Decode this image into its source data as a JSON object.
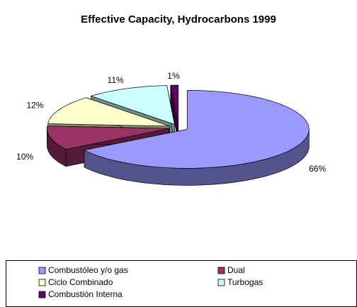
{
  "chart_data": {
    "type": "pie3d",
    "title": "Effective Capacity, Hydrocarbons 1999",
    "categories": [
      "Combustóleo y/o gas",
      "Dual",
      "Ciclo Combinado",
      "Turbogas",
      "Combustión Interna"
    ],
    "values": [
      66,
      10,
      12,
      11,
      1
    ],
    "value_labels": [
      "66%",
      "10%",
      "12%",
      "11%",
      "1%"
    ],
    "colors": [
      "#9999ff",
      "#993366",
      "#ffffcc",
      "#ccffff",
      "#660066"
    ],
    "legend": "bottom"
  }
}
